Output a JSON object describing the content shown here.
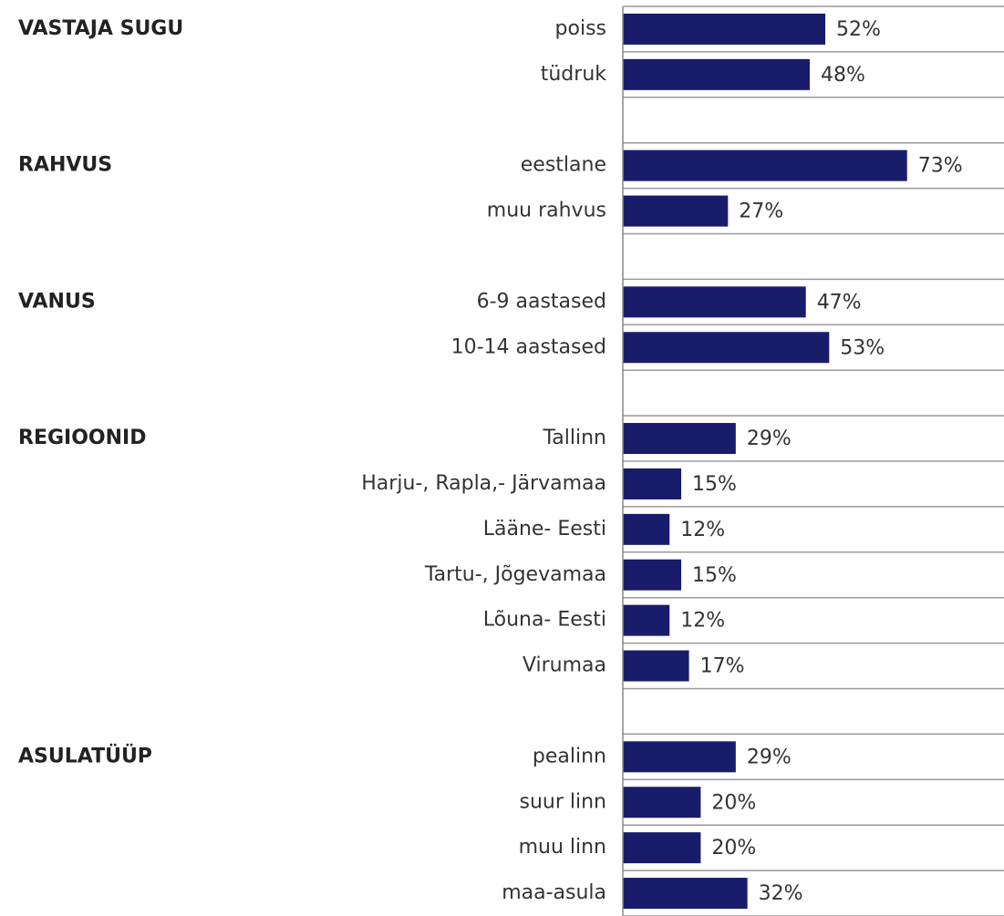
{
  "chart_data": {
    "type": "bar",
    "orientation": "horizontal",
    "color": "#191c6b",
    "xlim": [
      0,
      100
    ],
    "groups": [
      {
        "name": "VASTAJA SUGU",
        "categories": [
          "poiss",
          "tüdruk"
        ],
        "values": [
          52,
          48
        ],
        "value_labels": [
          "52%",
          "48%"
        ]
      },
      {
        "name": "RAHVUS",
        "categories": [
          "eestlane",
          "muu rahvus"
        ],
        "values": [
          73,
          27
        ],
        "value_labels": [
          "73%",
          "27%"
        ]
      },
      {
        "name": "VANUS",
        "categories": [
          "6-9 aastased",
          "10-14 aastased"
        ],
        "values": [
          47,
          53
        ],
        "value_labels": [
          "47%",
          "53%"
        ]
      },
      {
        "name": "REGIOONID",
        "categories": [
          "Tallinn",
          "Harju-, Rapla,- Järvamaa",
          "Lääne- Eesti",
          "Tartu-, Jõgevamaa",
          "Lõuna- Eesti",
          "Virumaa"
        ],
        "values": [
          29,
          15,
          12,
          15,
          12,
          17
        ],
        "value_labels": [
          "29%",
          "15%",
          "12%",
          "15%",
          "12%",
          "17%"
        ]
      },
      {
        "name": "ASULATÜÜP",
        "categories": [
          "pealinn",
          "suur linn",
          "muu linn",
          "maa-asula"
        ],
        "values": [
          29,
          20,
          20,
          32
        ],
        "value_labels": [
          "29%",
          "20%",
          "20%",
          "32%"
        ]
      }
    ]
  }
}
